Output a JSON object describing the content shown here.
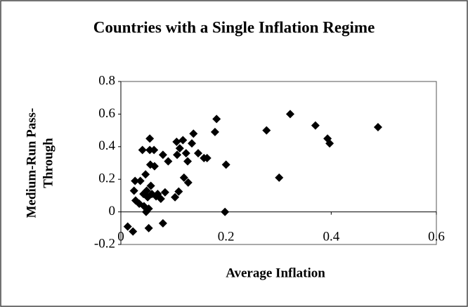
{
  "chart_data": {
    "type": "scatter",
    "title": "Countries with a Single Inflation Regime",
    "xlabel": "Average Inflation",
    "ylabel_lines": [
      "Medium-Run Pass-",
      "Through"
    ],
    "xlim": [
      0,
      0.6
    ],
    "xticks": [
      0,
      0.2,
      0.4,
      0.6
    ],
    "ylim": [
      -0.2,
      0.8
    ],
    "yticks": [
      -0.2,
      0,
      0.2,
      0.4,
      0.6,
      0.8
    ],
    "grid": false,
    "marker": "diamond",
    "series": [
      {
        "color": "#000000",
        "x": [
          0.013,
          0.023,
          0.027,
          0.025,
          0.028,
          0.035,
          0.037,
          0.041,
          0.043,
          0.044,
          0.047,
          0.048,
          0.049,
          0.051,
          0.053,
          0.053,
          0.055,
          0.055,
          0.056,
          0.057,
          0.059,
          0.063,
          0.064,
          0.067,
          0.07,
          0.076,
          0.08,
          0.08,
          0.084,
          0.09,
          0.103,
          0.106,
          0.107,
          0.11,
          0.112,
          0.118,
          0.12,
          0.124,
          0.127,
          0.128,
          0.135,
          0.138,
          0.147,
          0.158,
          0.164,
          0.179,
          0.182,
          0.198,
          0.2,
          0.277,
          0.301,
          0.322,
          0.37,
          0.393,
          0.397,
          0.489
        ],
        "values": [
          -0.09,
          -0.12,
          0.19,
          0.13,
          0.07,
          0.05,
          0.19,
          0.38,
          0.11,
          0.035,
          0.23,
          0.0,
          0.13,
          0.09,
          0.02,
          -0.1,
          0.45,
          0.38,
          0.29,
          0.16,
          0.11,
          0.38,
          0.28,
          0.095,
          0.11,
          0.08,
          -0.07,
          0.35,
          0.12,
          0.31,
          0.09,
          0.43,
          0.35,
          0.125,
          0.39,
          0.44,
          0.21,
          0.36,
          0.31,
          0.18,
          0.42,
          0.48,
          0.36,
          0.33,
          0.33,
          0.49,
          0.57,
          0.0,
          0.29,
          0.5,
          0.21,
          0.6,
          0.53,
          0.45,
          0.42,
          0.52
        ]
      }
    ]
  }
}
